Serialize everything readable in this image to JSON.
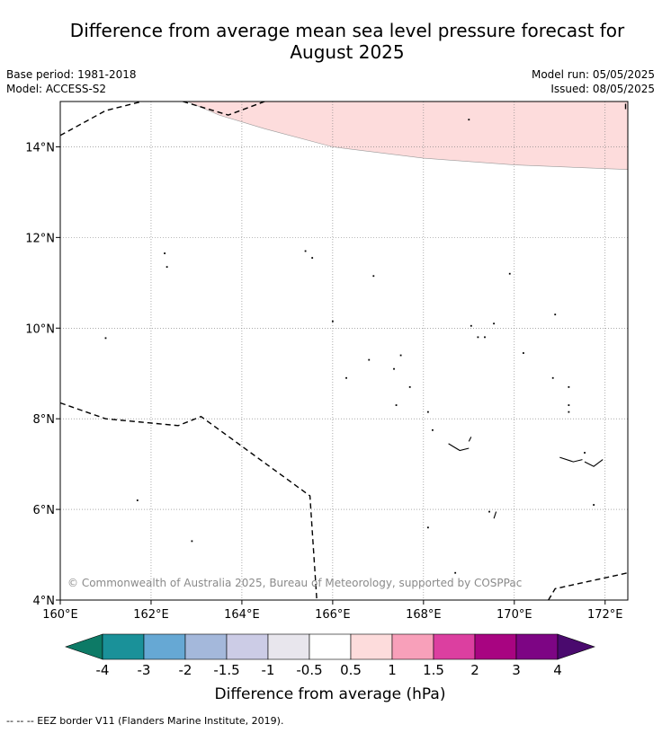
{
  "title": {
    "line1": "Difference from average mean sea level pressure forecast for",
    "line2": "August 2025"
  },
  "meta": {
    "base_period": "Base period: 1981-2018",
    "model": "Model: ACCESS-S2",
    "model_run": "Model run: 05/05/2025",
    "issued": "Issued: 08/05/2025"
  },
  "map": {
    "lon_range": [
      160,
      172.5
    ],
    "lat_range": [
      4,
      15
    ],
    "lon_ticks": [
      {
        "value": 160,
        "label": "160°E"
      },
      {
        "value": 162,
        "label": "162°E"
      },
      {
        "value": 164,
        "label": "164°E"
      },
      {
        "value": 166,
        "label": "166°E"
      },
      {
        "value": 168,
        "label": "168°E"
      },
      {
        "value": 170,
        "label": "170°E"
      },
      {
        "value": 172,
        "label": "172°E"
      }
    ],
    "lat_ticks": [
      {
        "value": 4,
        "label": "4°N"
      },
      {
        "value": 6,
        "label": "6°N"
      },
      {
        "value": 8,
        "label": "8°N"
      },
      {
        "value": 10,
        "label": "10°N"
      },
      {
        "value": 12,
        "label": "12°N"
      },
      {
        "value": 14,
        "label": "14°N"
      }
    ],
    "grid": true,
    "anomaly_region": {
      "category": "0.5 to 1",
      "color": "#fddcdc",
      "boundary": [
        [
          162.8,
          15
        ],
        [
          163.5,
          14.7
        ],
        [
          164.5,
          14.4
        ],
        [
          166,
          14.0
        ],
        [
          168,
          13.75
        ],
        [
          170,
          13.6
        ],
        [
          172.5,
          13.5
        ]
      ]
    },
    "eez_borders": [
      [
        [
          160,
          14.25
        ],
        [
          161,
          14.8
        ],
        [
          161.8,
          15
        ]
      ],
      [
        [
          162.7,
          15
        ],
        [
          163.7,
          14.7
        ],
        [
          164.5,
          15
        ]
      ],
      [
        [
          172.45,
          14.95
        ],
        [
          172.45,
          14.8
        ]
      ],
      [
        [
          160,
          8.35
        ],
        [
          161,
          8
        ],
        [
          162.6,
          7.85
        ],
        [
          163.1,
          8.05
        ],
        [
          165.5,
          6.3
        ],
        [
          165.65,
          4
        ]
      ],
      [
        [
          170.75,
          4
        ],
        [
          170.9,
          4.25
        ],
        [
          172.5,
          4.6
        ]
      ]
    ],
    "islands": [
      [
        161,
        9.78
      ],
      [
        162.3,
        11.65
      ],
      [
        162.35,
        11.35
      ],
      [
        165.4,
        11.7
      ],
      [
        165.55,
        11.55
      ],
      [
        166,
        10.15
      ],
      [
        166.9,
        11.15
      ],
      [
        169,
        14.6
      ],
      [
        169.9,
        11.2
      ],
      [
        166.3,
        8.9
      ],
      [
        166.8,
        9.3
      ],
      [
        167.35,
        9.1
      ],
      [
        167.5,
        9.4
      ],
      [
        167.7,
        8.7
      ],
      [
        167.4,
        8.3
      ],
      [
        168.1,
        8.15
      ],
      [
        168.2,
        7.75
      ],
      [
        169.05,
        10.05
      ],
      [
        169.55,
        10.1
      ],
      [
        169.2,
        9.8
      ],
      [
        169.35,
        9.8
      ],
      [
        170.2,
        9.45
      ],
      [
        170.9,
        10.3
      ],
      [
        170.85,
        8.9
      ],
      [
        171.2,
        8.7
      ],
      [
        171.2,
        8.3
      ],
      [
        171.2,
        8.15
      ],
      [
        162.9,
        5.3
      ],
      [
        161.7,
        6.2
      ],
      [
        168.1,
        5.6
      ],
      [
        168.7,
        4.6
      ],
      [
        169.45,
        5.95
      ],
      [
        171.75,
        6.1
      ],
      [
        171.55,
        7.25
      ]
    ],
    "atolls": [
      [
        [
          168.55,
          7.45
        ],
        [
          168.8,
          7.3
        ],
        [
          169,
          7.35
        ]
      ],
      [
        [
          169,
          7.5
        ],
        [
          169.05,
          7.6
        ]
      ],
      [
        [
          169.55,
          5.8
        ],
        [
          169.6,
          5.95
        ]
      ],
      [
        [
          171,
          7.15
        ],
        [
          171.3,
          7.05
        ],
        [
          171.5,
          7.1
        ]
      ],
      [
        [
          171.55,
          7.05
        ],
        [
          171.75,
          6.95
        ],
        [
          171.95,
          7.1
        ]
      ]
    ],
    "copyright": "© Commonwealth of Australia 2025, Bureau of Meteorology, supported by COSPPac"
  },
  "legend": {
    "title": "Difference from average (hPa)",
    "low_extend_color": "#0d7a66",
    "high_extend_color": "#4a0a6e",
    "bins": [
      {
        "color": "#1a9199"
      },
      {
        "color": "#66a8d4"
      },
      {
        "color": "#a4b8db"
      },
      {
        "color": "#cccce6"
      },
      {
        "color": "#e8e6ed"
      },
      {
        "color": "#ffffff"
      },
      {
        "color": "#fddcdc"
      },
      {
        "color": "#f8a0ba"
      },
      {
        "color": "#dc3fa0"
      },
      {
        "color": "#a80481"
      },
      {
        "color": "#7d0584"
      }
    ],
    "tick_labels": [
      "-4",
      "-3",
      "-2",
      "-1.5",
      "-1",
      "-0.5",
      "0.5",
      "1",
      "1.5",
      "2",
      "3",
      "4"
    ]
  },
  "footer": {
    "eez_legend": "-- -- -- EEZ border V11 (Flanders Marine Institute, 2019)."
  }
}
